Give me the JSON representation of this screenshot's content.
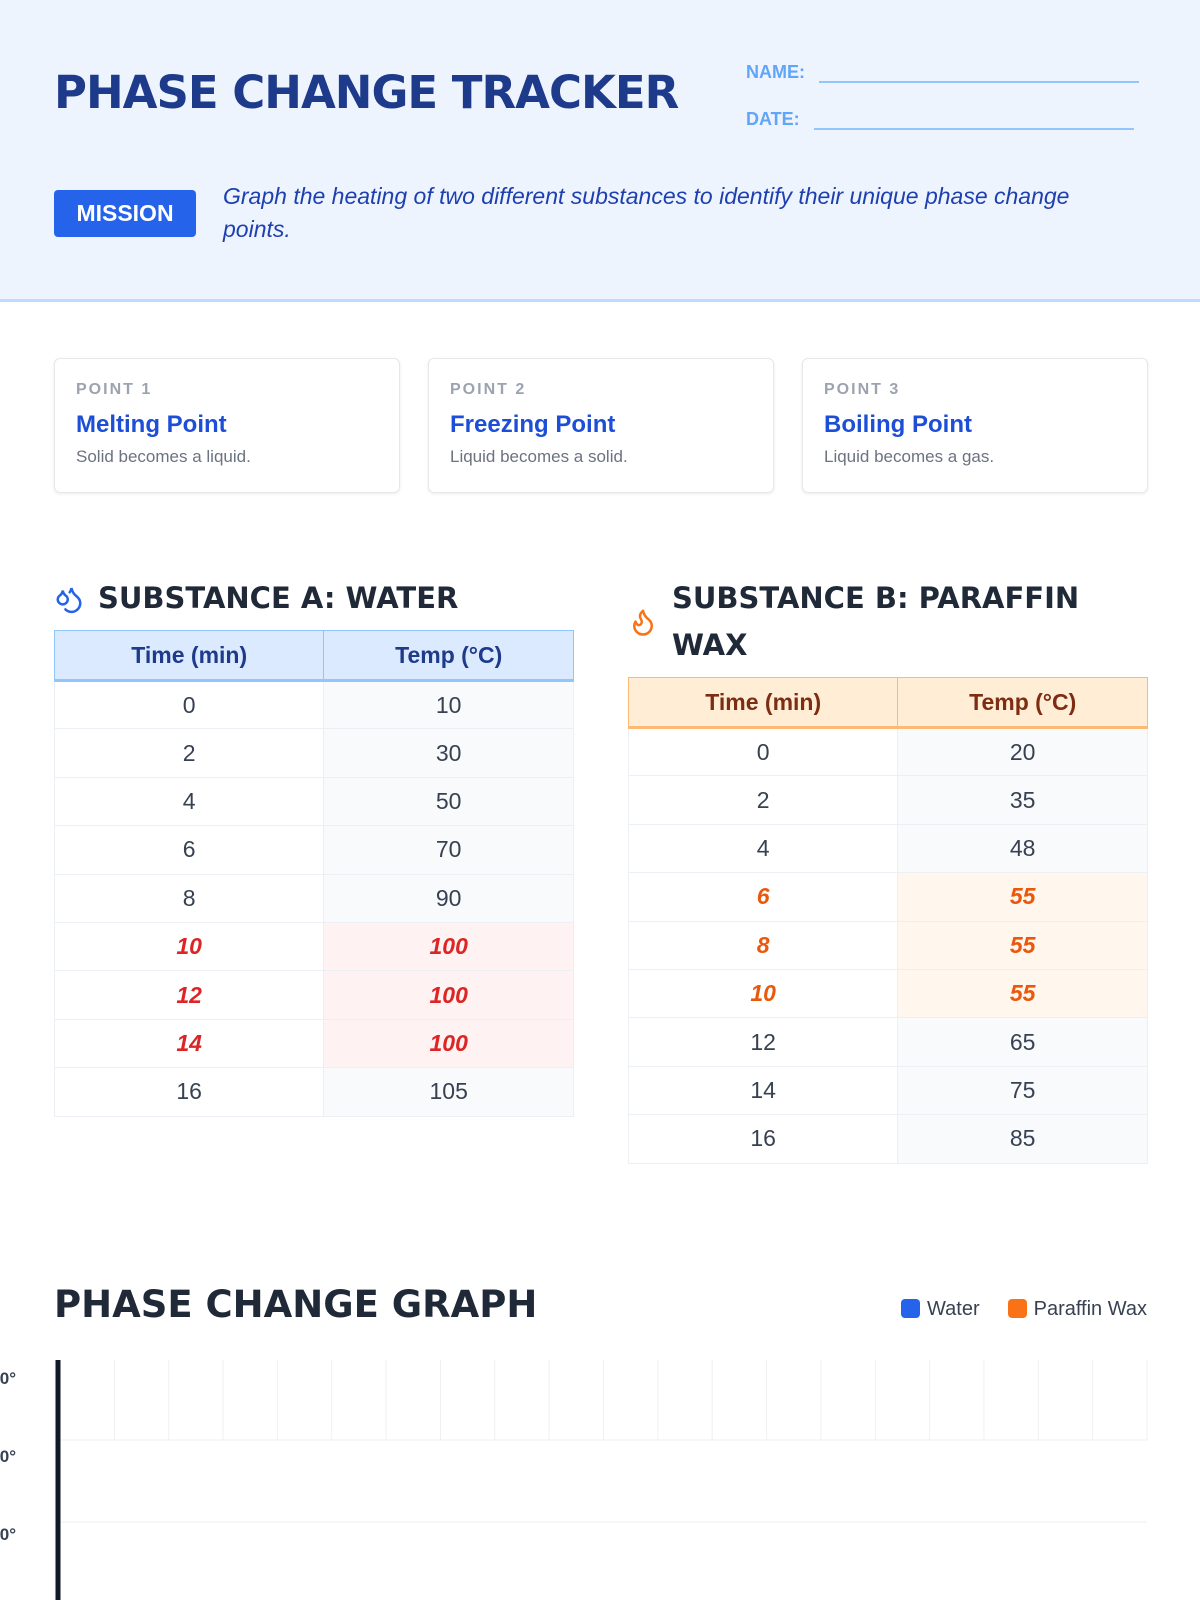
{
  "header": {
    "title": "PHASE CHANGE TRACKER",
    "name_label": "NAME:",
    "date_label": "DATE:",
    "mission_badge": "MISSION",
    "mission_text": "Graph the heating of two different substances to identify their unique phase change points."
  },
  "cards": [
    {
      "label": "POINT 1",
      "title": "Melting Point",
      "description": "Solid becomes a liquid."
    },
    {
      "label": "POINT 2",
      "title": "Freezing Point",
      "description": "Liquid becomes a solid."
    },
    {
      "label": "POINT 3",
      "title": "Boiling Point",
      "description": "Liquid becomes a gas."
    }
  ],
  "tables": [
    {
      "title": "SUBSTANCE A: WATER",
      "columns": [
        "Time (min)",
        "Temp (°C)"
      ],
      "rows": [
        [
          0,
          10
        ],
        [
          2,
          30
        ],
        [
          4,
          50
        ],
        [
          6,
          70
        ],
        [
          8,
          90
        ],
        [
          10,
          100
        ],
        [
          12,
          100
        ],
        [
          14,
          100
        ],
        [
          16,
          105
        ]
      ],
      "highlight_rows": [
        5,
        6,
        7
      ],
      "header_color": "#dbeafe",
      "border_color": "#93c5fd",
      "header_text_color": "#1e3a8a",
      "highlight_bg": "#fef2f2",
      "highlight_color": "#dc2626"
    },
    {
      "title": "SUBSTANCE B: PARAFFIN WAX",
      "columns": [
        "Time (min)",
        "Temp (°C)"
      ],
      "rows": [
        [
          0,
          20
        ],
        [
          2,
          35
        ],
        [
          4,
          48
        ],
        [
          6,
          55
        ],
        [
          8,
          55
        ],
        [
          10,
          55
        ],
        [
          12,
          65
        ],
        [
          14,
          75
        ],
        [
          16,
          85
        ]
      ],
      "highlight_rows": [
        3,
        4,
        5
      ],
      "header_color": "#ffedd5",
      "border_color": "#fdba74",
      "header_text_color": "#7c2d12",
      "highlight_bg": "#fff7ed",
      "highlight_color": "#ea580c"
    }
  ],
  "graph": {
    "title": "PHASE CHANGE GRAPH",
    "legend": [
      {
        "name": "Water",
        "color": "#2563eb"
      },
      {
        "name": "Paraffin Wax",
        "color": "#f97316"
      }
    ],
    "y_axis_labels": [
      "0°",
      "0°",
      "0°"
    ]
  }
}
